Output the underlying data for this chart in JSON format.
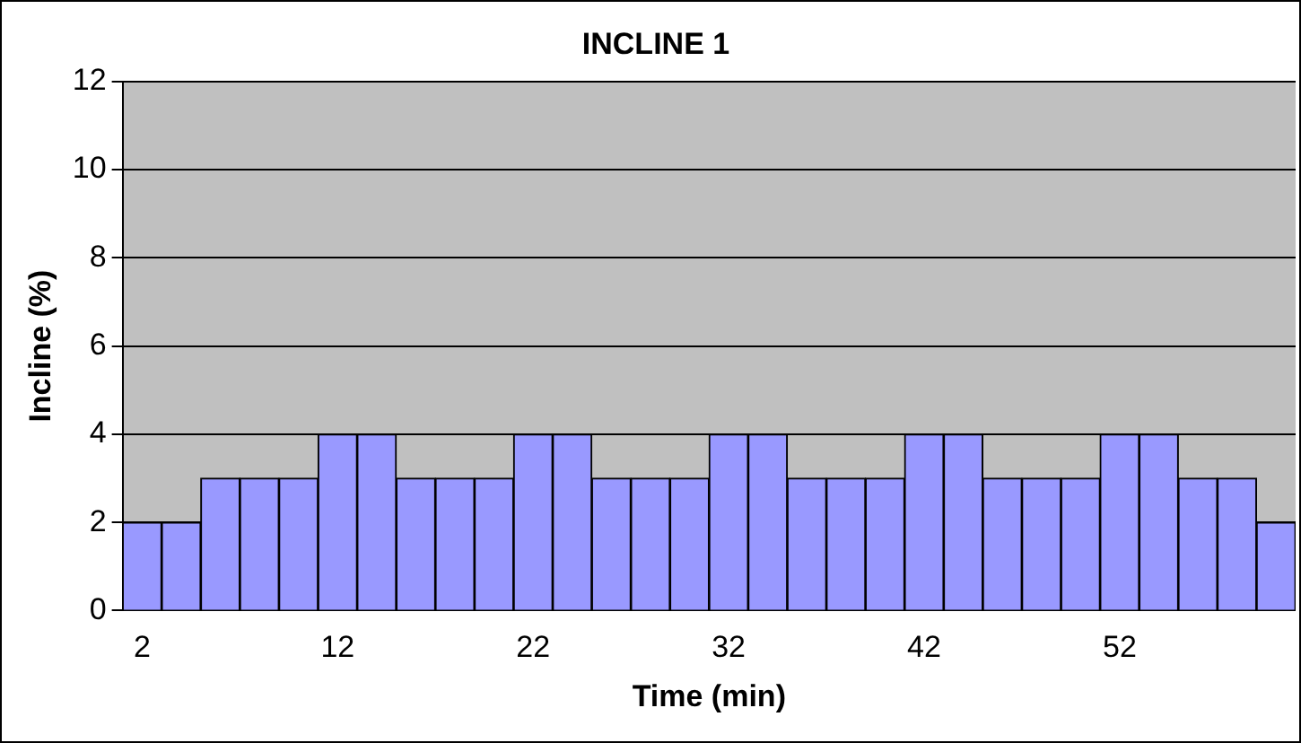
{
  "chart_data": {
    "type": "bar",
    "title": "INCLINE 1",
    "xlabel": "Time (min)",
    "ylabel": "Incline (%)",
    "categories": [
      "2",
      null,
      null,
      null,
      null,
      "12",
      null,
      null,
      null,
      null,
      "22",
      null,
      null,
      null,
      null,
      "32",
      null,
      null,
      null,
      null,
      "42",
      null,
      null,
      null,
      null,
      "52",
      null,
      null,
      null,
      null
    ],
    "values": [
      2,
      2,
      3,
      3,
      3,
      4,
      4,
      3,
      3,
      3,
      4,
      4,
      3,
      3,
      3,
      4,
      4,
      3,
      3,
      3,
      4,
      4,
      3,
      3,
      3,
      4,
      4,
      3,
      3,
      2
    ],
    "color": "#9999ff",
    "ylim": [
      0,
      12
    ],
    "yticks": [
      0,
      2,
      4,
      6,
      8,
      10,
      12
    ],
    "grid": "y",
    "legend": false
  }
}
